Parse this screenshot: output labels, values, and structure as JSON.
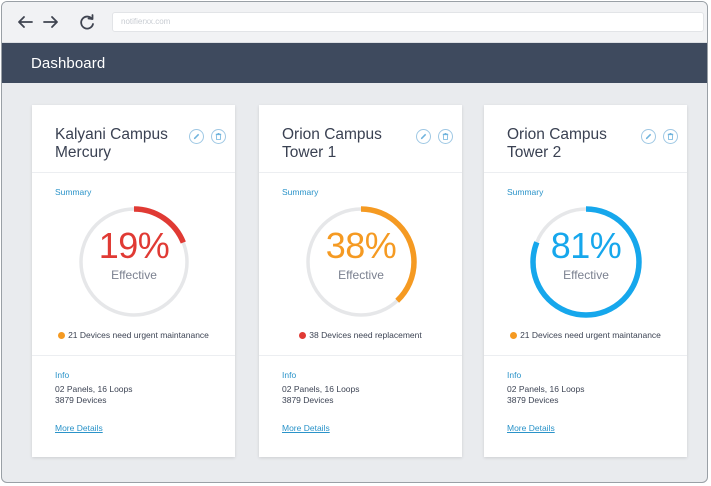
{
  "browser": {
    "address": "notifierxx.com",
    "icons": [
      "arrow-left-icon",
      "arrow-right-icon",
      "reload-icon"
    ]
  },
  "app": {
    "title": "Dashboard"
  },
  "colors": {
    "header_bg": "#3e4a5e",
    "link": "#2a93c9",
    "track": "#e6e7e9",
    "red": "#e03a34",
    "orange": "#f59a22",
    "blue": "#16a7ec"
  },
  "cards": [
    {
      "title": "Kalyani Campus\nMercury",
      "summary_label": "Summary",
      "percent": 19,
      "percent_text": "19%",
      "effective_label": "Effective",
      "gauge_color": "#e03a34",
      "status_dot_color": "#f59a22",
      "status_text": "21 Devices need urgent maintanance",
      "info_label": "Info",
      "info_lines": [
        "02 Panels, 16 Loops",
        "3879 Devices"
      ],
      "link_text": "More Details"
    },
    {
      "title": "Orion Campus\nTower 1",
      "summary_label": "Summary",
      "percent": 38,
      "percent_text": "38%",
      "effective_label": "Effective",
      "gauge_color": "#f59a22",
      "status_dot_color": "#e03a34",
      "status_text": "38 Devices need replacement",
      "info_label": "Info",
      "info_lines": [
        "02 Panels, 16 Loops",
        "3879 Devices"
      ],
      "link_text": "More Details"
    },
    {
      "title": "Orion Campus\nTower 2",
      "summary_label": "Summary",
      "percent": 81,
      "percent_text": "81%",
      "effective_label": "Effective",
      "gauge_color": "#16a7ec",
      "status_dot_color": "#f59a22",
      "status_text": "21 Devices need urgent maintanance",
      "info_label": "Info",
      "info_lines": [
        "02 Panels, 16 Loops",
        "3879 Devices"
      ],
      "link_text": "More Details"
    }
  ]
}
